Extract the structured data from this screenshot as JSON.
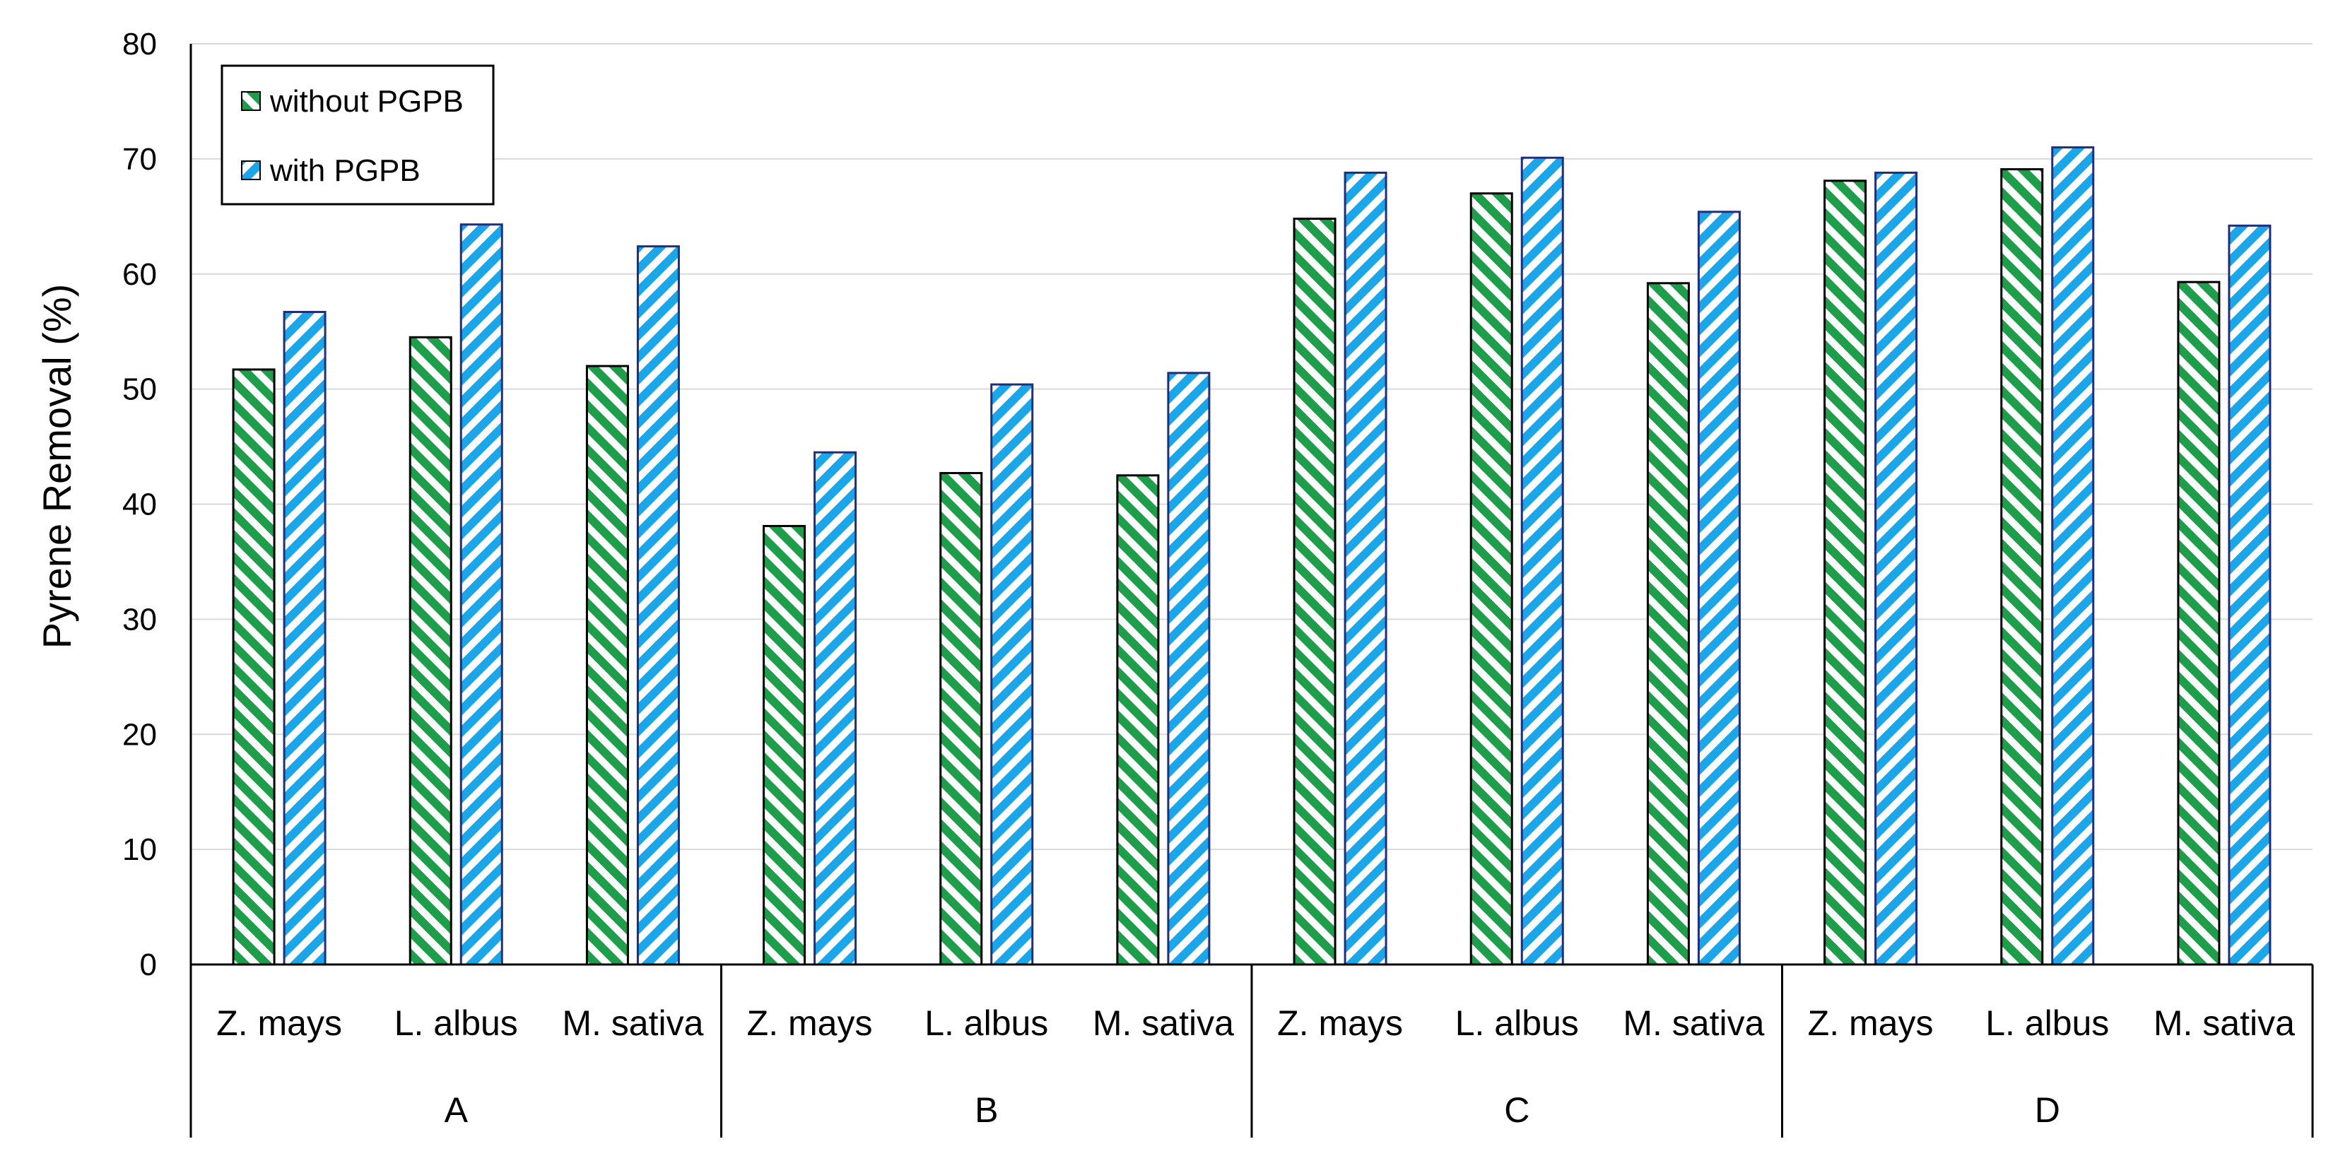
{
  "chart_data": {
    "type": "bar",
    "title": "",
    "xlabel": "",
    "ylabel": "Pyrene Removal (%)",
    "ylim": [
      0,
      80
    ],
    "yticks": [
      0,
      10,
      20,
      30,
      40,
      50,
      60,
      70,
      80
    ],
    "grid": true,
    "legend_position": "top-left",
    "groups": [
      {
        "label": "A",
        "categories": [
          "Z. mays",
          "L. albus",
          "M. sativa"
        ]
      },
      {
        "label": "B",
        "categories": [
          "Z. mays",
          "L. albus",
          "M. sativa"
        ]
      },
      {
        "label": "C",
        "categories": [
          "Z. mays",
          "L. albus",
          "M. sativa"
        ]
      },
      {
        "label": "D",
        "categories": [
          "Z. mays",
          "L. albus",
          "M. sativa"
        ]
      }
    ],
    "series": [
      {
        "name": "without PGPB",
        "color": "#1e9e4a",
        "values": [
          51.7,
          54.5,
          52.0,
          38.1,
          42.7,
          42.5,
          64.8,
          67.0,
          59.2,
          68.1,
          69.1,
          59.3
        ]
      },
      {
        "name": "with PGPB",
        "color": "#1aa6e8",
        "values": [
          56.7,
          64.3,
          62.4,
          44.5,
          50.4,
          51.4,
          68.8,
          70.1,
          65.4,
          68.8,
          71.0,
          64.2
        ]
      }
    ]
  }
}
